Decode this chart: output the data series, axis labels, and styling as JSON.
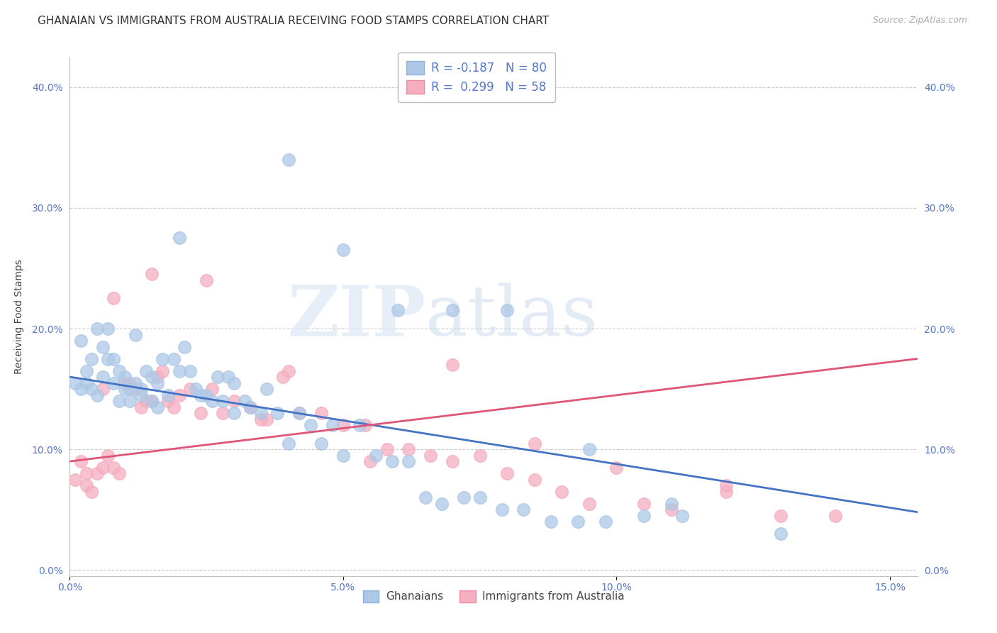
{
  "title": "GHANAIAN VS IMMIGRANTS FROM AUSTRALIA RECEIVING FOOD STAMPS CORRELATION CHART",
  "source": "Source: ZipAtlas.com",
  "xlabel_ticks": [
    "0.0%",
    "5.0%",
    "10.0%",
    "15.0%"
  ],
  "xlabel_vals": [
    0.0,
    0.05,
    0.1,
    0.15
  ],
  "ylabel_ticks": [
    "0.0%",
    "10.0%",
    "20.0%",
    "30.0%",
    "40.0%"
  ],
  "ylabel_vals": [
    0.0,
    0.1,
    0.2,
    0.3,
    0.4
  ],
  "xlim": [
    0.0,
    0.155
  ],
  "ylim": [
    -0.005,
    0.425
  ],
  "watermark_left": "ZIP",
  "watermark_right": "atlas",
  "ghanaian_R": -0.187,
  "ghanaian_N": 80,
  "australia_R": 0.299,
  "australia_N": 58,
  "ghanaian_color": "#adc8e6",
  "australia_color": "#f5aec0",
  "ghanaian_line_color": "#4472c4",
  "australia_line_color": "#e05575",
  "ghanaian_line_x0": 0.0,
  "ghanaian_line_y0": 0.16,
  "ghanaian_line_x1": 0.155,
  "ghanaian_line_y1": 0.048,
  "australia_line_x0": 0.0,
  "australia_line_y0": 0.09,
  "australia_line_x1": 0.155,
  "australia_line_y1": 0.175,
  "ghanaian_x": [
    0.001,
    0.002,
    0.002,
    0.003,
    0.003,
    0.004,
    0.004,
    0.005,
    0.005,
    0.006,
    0.006,
    0.007,
    0.007,
    0.008,
    0.008,
    0.009,
    0.009,
    0.01,
    0.01,
    0.011,
    0.011,
    0.012,
    0.012,
    0.013,
    0.013,
    0.014,
    0.015,
    0.015,
    0.016,
    0.016,
    0.017,
    0.018,
    0.019,
    0.02,
    0.021,
    0.022,
    0.023,
    0.024,
    0.025,
    0.026,
    0.027,
    0.028,
    0.029,
    0.03,
    0.032,
    0.033,
    0.035,
    0.036,
    0.038,
    0.04,
    0.042,
    0.044,
    0.046,
    0.048,
    0.05,
    0.053,
    0.056,
    0.059,
    0.062,
    0.065,
    0.068,
    0.072,
    0.075,
    0.079,
    0.083,
    0.088,
    0.093,
    0.098,
    0.105,
    0.112,
    0.02,
    0.03,
    0.04,
    0.05,
    0.06,
    0.07,
    0.08,
    0.095,
    0.11,
    0.13
  ],
  "ghanaian_y": [
    0.155,
    0.15,
    0.19,
    0.165,
    0.155,
    0.15,
    0.175,
    0.145,
    0.2,
    0.185,
    0.16,
    0.175,
    0.2,
    0.155,
    0.175,
    0.165,
    0.14,
    0.15,
    0.16,
    0.14,
    0.15,
    0.195,
    0.155,
    0.15,
    0.145,
    0.165,
    0.14,
    0.16,
    0.135,
    0.155,
    0.175,
    0.145,
    0.175,
    0.165,
    0.185,
    0.165,
    0.15,
    0.145,
    0.145,
    0.14,
    0.16,
    0.14,
    0.16,
    0.13,
    0.14,
    0.135,
    0.13,
    0.15,
    0.13,
    0.105,
    0.13,
    0.12,
    0.105,
    0.12,
    0.095,
    0.12,
    0.095,
    0.09,
    0.09,
    0.06,
    0.055,
    0.06,
    0.06,
    0.05,
    0.05,
    0.04,
    0.04,
    0.04,
    0.045,
    0.045,
    0.275,
    0.155,
    0.34,
    0.265,
    0.215,
    0.215,
    0.215,
    0.1,
    0.055,
    0.03
  ],
  "australia_x": [
    0.001,
    0.002,
    0.003,
    0.003,
    0.004,
    0.005,
    0.006,
    0.006,
    0.007,
    0.008,
    0.009,
    0.01,
    0.011,
    0.012,
    0.013,
    0.014,
    0.015,
    0.016,
    0.017,
    0.018,
    0.019,
    0.02,
    0.022,
    0.024,
    0.026,
    0.028,
    0.03,
    0.033,
    0.036,
    0.039,
    0.042,
    0.046,
    0.05,
    0.054,
    0.058,
    0.062,
    0.066,
    0.07,
    0.075,
    0.08,
    0.085,
    0.09,
    0.095,
    0.1,
    0.11,
    0.12,
    0.13,
    0.14,
    0.04,
    0.055,
    0.07,
    0.085,
    0.105,
    0.12,
    0.035,
    0.025,
    0.015,
    0.008
  ],
  "australia_y": [
    0.075,
    0.09,
    0.08,
    0.07,
    0.065,
    0.08,
    0.15,
    0.085,
    0.095,
    0.085,
    0.08,
    0.155,
    0.155,
    0.15,
    0.135,
    0.14,
    0.14,
    0.16,
    0.165,
    0.14,
    0.135,
    0.145,
    0.15,
    0.13,
    0.15,
    0.13,
    0.14,
    0.135,
    0.125,
    0.16,
    0.13,
    0.13,
    0.12,
    0.12,
    0.1,
    0.1,
    0.095,
    0.09,
    0.095,
    0.08,
    0.075,
    0.065,
    0.055,
    0.085,
    0.05,
    0.065,
    0.045,
    0.045,
    0.165,
    0.09,
    0.17,
    0.105,
    0.055,
    0.07,
    0.125,
    0.24,
    0.245,
    0.225
  ],
  "legend_label_ghanaian": "Ghanaians",
  "legend_label_australia": "Immigrants from Australia",
  "title_fontsize": 11,
  "axis_label_fontsize": 10,
  "tick_fontsize": 10,
  "legend_fontsize": 12,
  "source_fontsize": 9,
  "background_color": "#ffffff",
  "grid_color": "#cccccc",
  "tick_color": "#5577cc",
  "axis_color": "#bbbbbb"
}
